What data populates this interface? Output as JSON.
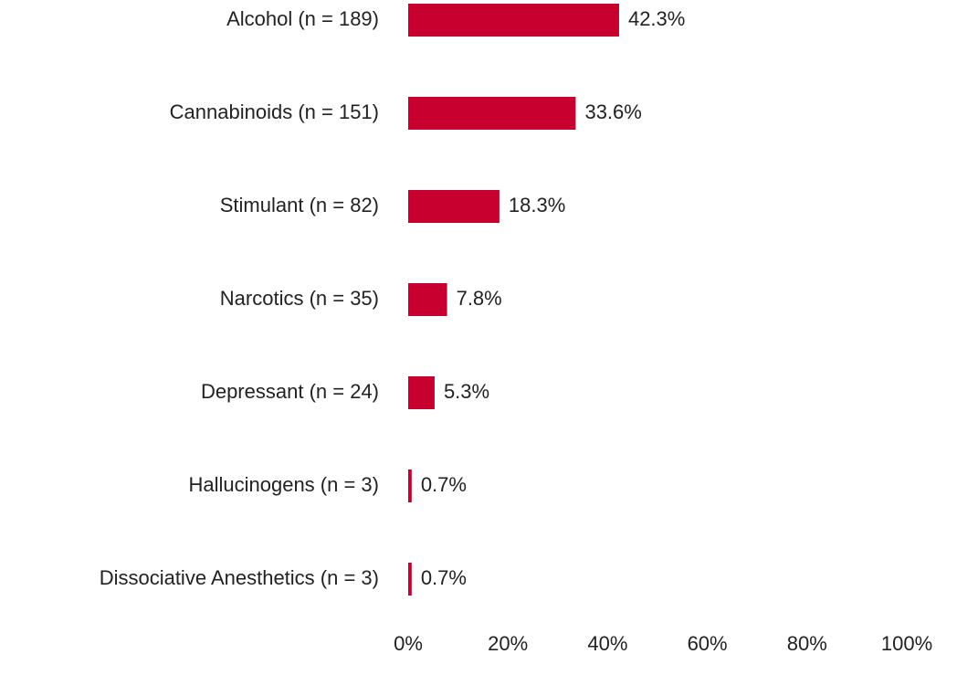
{
  "chart_data": {
    "type": "bar",
    "orientation": "horizontal",
    "categories": [
      "Alcohol (n = 189)",
      "Cannabinoids (n = 151)",
      "Stimulant (n = 82)",
      "Narcotics (n = 35)",
      "Depressant (n = 24)",
      "Hallucinogens (n = 3)",
      "Dissociative Anesthetics (n = 3)"
    ],
    "values": [
      42.3,
      33.6,
      18.3,
      7.8,
      5.3,
      0.7,
      0.7
    ],
    "value_labels": [
      "42.3%",
      "33.6%",
      "18.3%",
      "7.8%",
      "5.3%",
      "0.7%",
      "0.7%"
    ],
    "color": "#c8002f",
    "xlim": [
      0,
      100
    ],
    "xticks": [
      {
        "value": 0,
        "label": "0%"
      },
      {
        "value": 20,
        "label": "20%"
      },
      {
        "value": 40,
        "label": "40%"
      },
      {
        "value": 60,
        "label": "60%"
      },
      {
        "value": 80,
        "label": "80%"
      },
      {
        "value": 100,
        "label": "100%"
      }
    ],
    "grid": false
  }
}
